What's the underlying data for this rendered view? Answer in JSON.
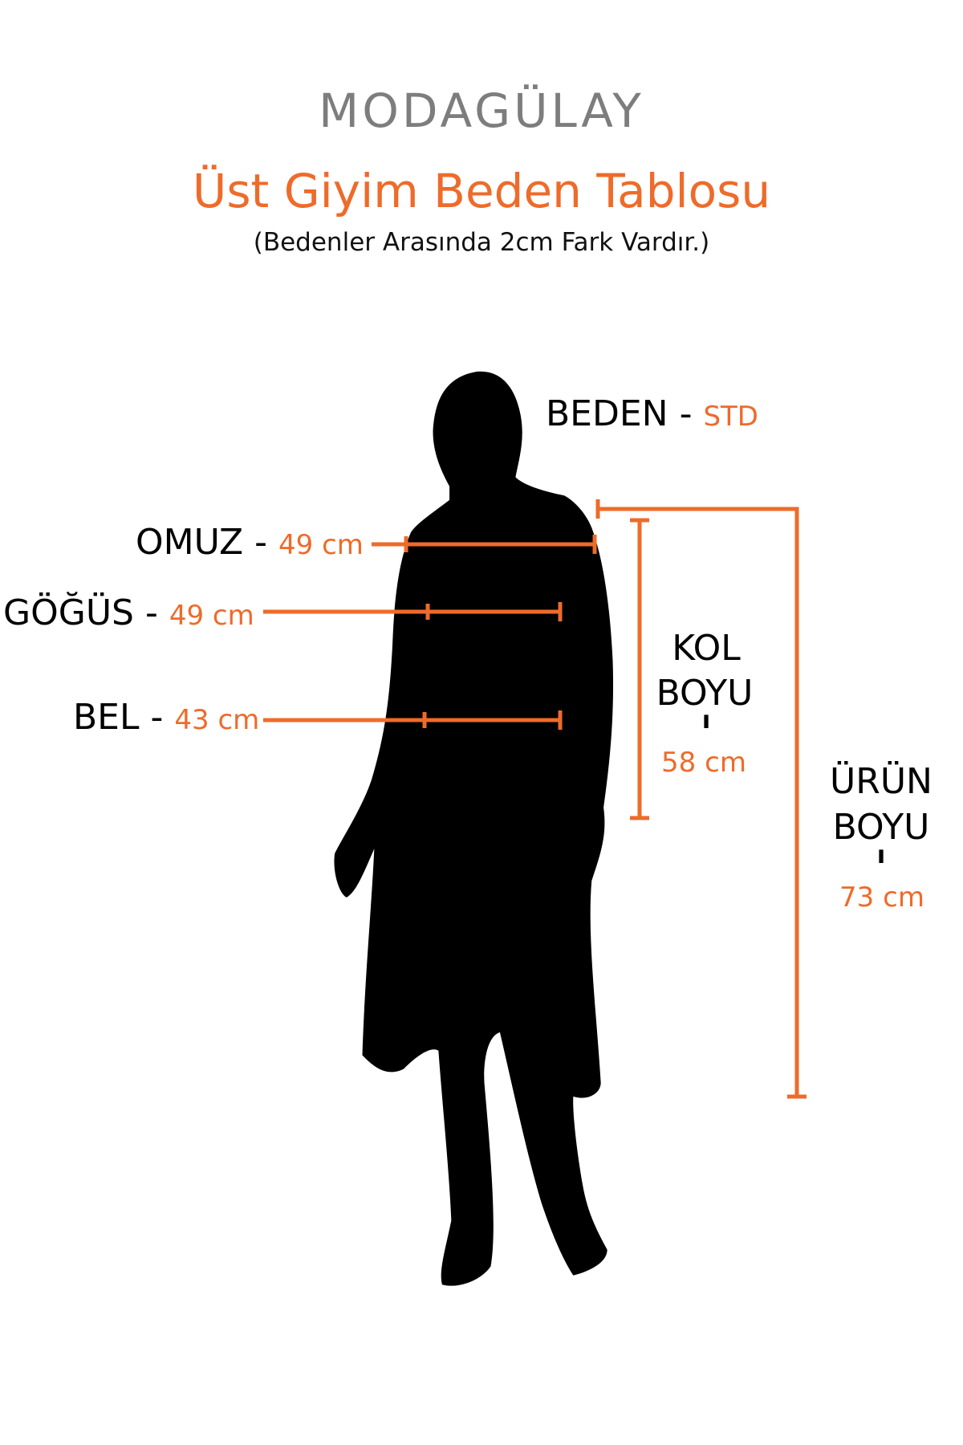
{
  "brand": {
    "logo": "MODAGÜLAY"
  },
  "header": {
    "title": "Üst Giyim Beden Tablosu",
    "subtitle": "(Bedenler Arasında 2cm Fark Vardır.)"
  },
  "measurements": {
    "beden": {
      "label": "BEDEN -",
      "value": "STD"
    },
    "omuz": {
      "label": "OMUZ -",
      "value": "49 cm"
    },
    "gogus": {
      "label": "GÖĞÜS -",
      "value": "49 cm"
    },
    "bel": {
      "label": "BEL -",
      "value": "43 cm"
    },
    "kol_boyu": {
      "label_line1": "KOL",
      "label_line2": "BOYU",
      "separator": "ı",
      "value": "58 cm"
    },
    "urun_boyu": {
      "label_line1": "ÜRÜN",
      "label_line2": "BOYU",
      "separator": "ı",
      "value": "73 cm"
    }
  },
  "colors": {
    "accent": "#ee6b2a",
    "logo": "#7d7d7d",
    "text": "#000000",
    "silhouette": "#000000"
  }
}
